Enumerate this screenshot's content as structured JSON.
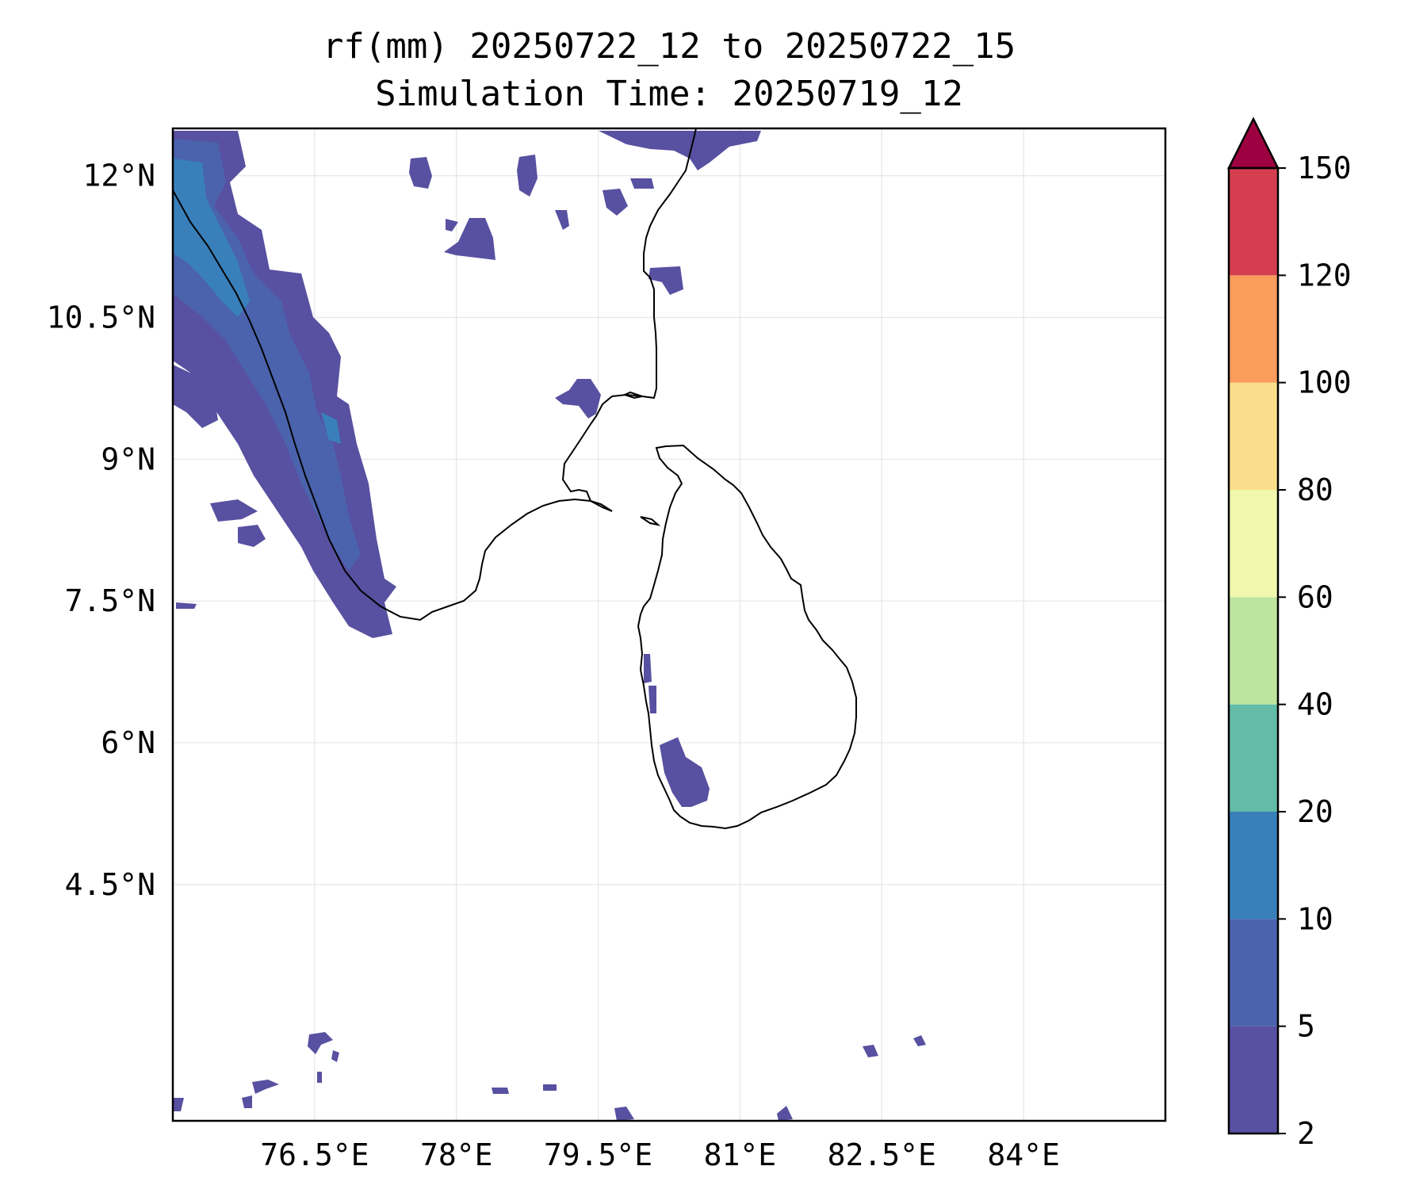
{
  "title": "rf(mm) 20250722_12 to 20250722_15",
  "subtitle": "Simulation Time: 20250719_12",
  "map": {
    "lon_range": [
      75.0,
      85.5
    ],
    "lat_range": [
      2.0,
      12.5
    ],
    "lon_ticks": [
      {
        "value": 76.5,
        "label": "76.5°E"
      },
      {
        "value": 78.0,
        "label": "78°E"
      },
      {
        "value": 79.5,
        "label": "79.5°E"
      },
      {
        "value": 81.0,
        "label": "81°E"
      },
      {
        "value": 82.5,
        "label": "82.5°E"
      },
      {
        "value": 84.0,
        "label": "84°E"
      }
    ],
    "lat_ticks": [
      {
        "value": 12.0,
        "label": "12°N"
      },
      {
        "value": 10.5,
        "label": "10.5°N"
      },
      {
        "value": 9.0,
        "label": "9°N"
      },
      {
        "value": 7.5,
        "label": "7.5°N"
      },
      {
        "value": 6.0,
        "label": "6°N"
      },
      {
        "value": 4.5,
        "label": "4.5°N"
      }
    ],
    "grid": true
  },
  "colorbar": {
    "levels": [
      {
        "label": "2",
        "color": "#5850a0"
      },
      {
        "label": "5",
        "color": "#4b63ad"
      },
      {
        "label": "10",
        "color": "#3980ba"
      },
      {
        "label": "20",
        "color": "#62bca8"
      },
      {
        "label": "40",
        "color": "#bee5a0"
      },
      {
        "label": "60",
        "color": "#f1f8ae"
      },
      {
        "label": "80",
        "color": "#fbde8c"
      },
      {
        "label": "100",
        "color": "#f99c5c"
      },
      {
        "label": "120",
        "color": "#d53e4f"
      },
      {
        "label": "150",
        "color": "#9e0142"
      }
    ],
    "extend": "max"
  },
  "rain_color_light": "#5850a0",
  "rain_color_mid": "#4b63ad",
  "rain_color_heavy": "#3980ba"
}
